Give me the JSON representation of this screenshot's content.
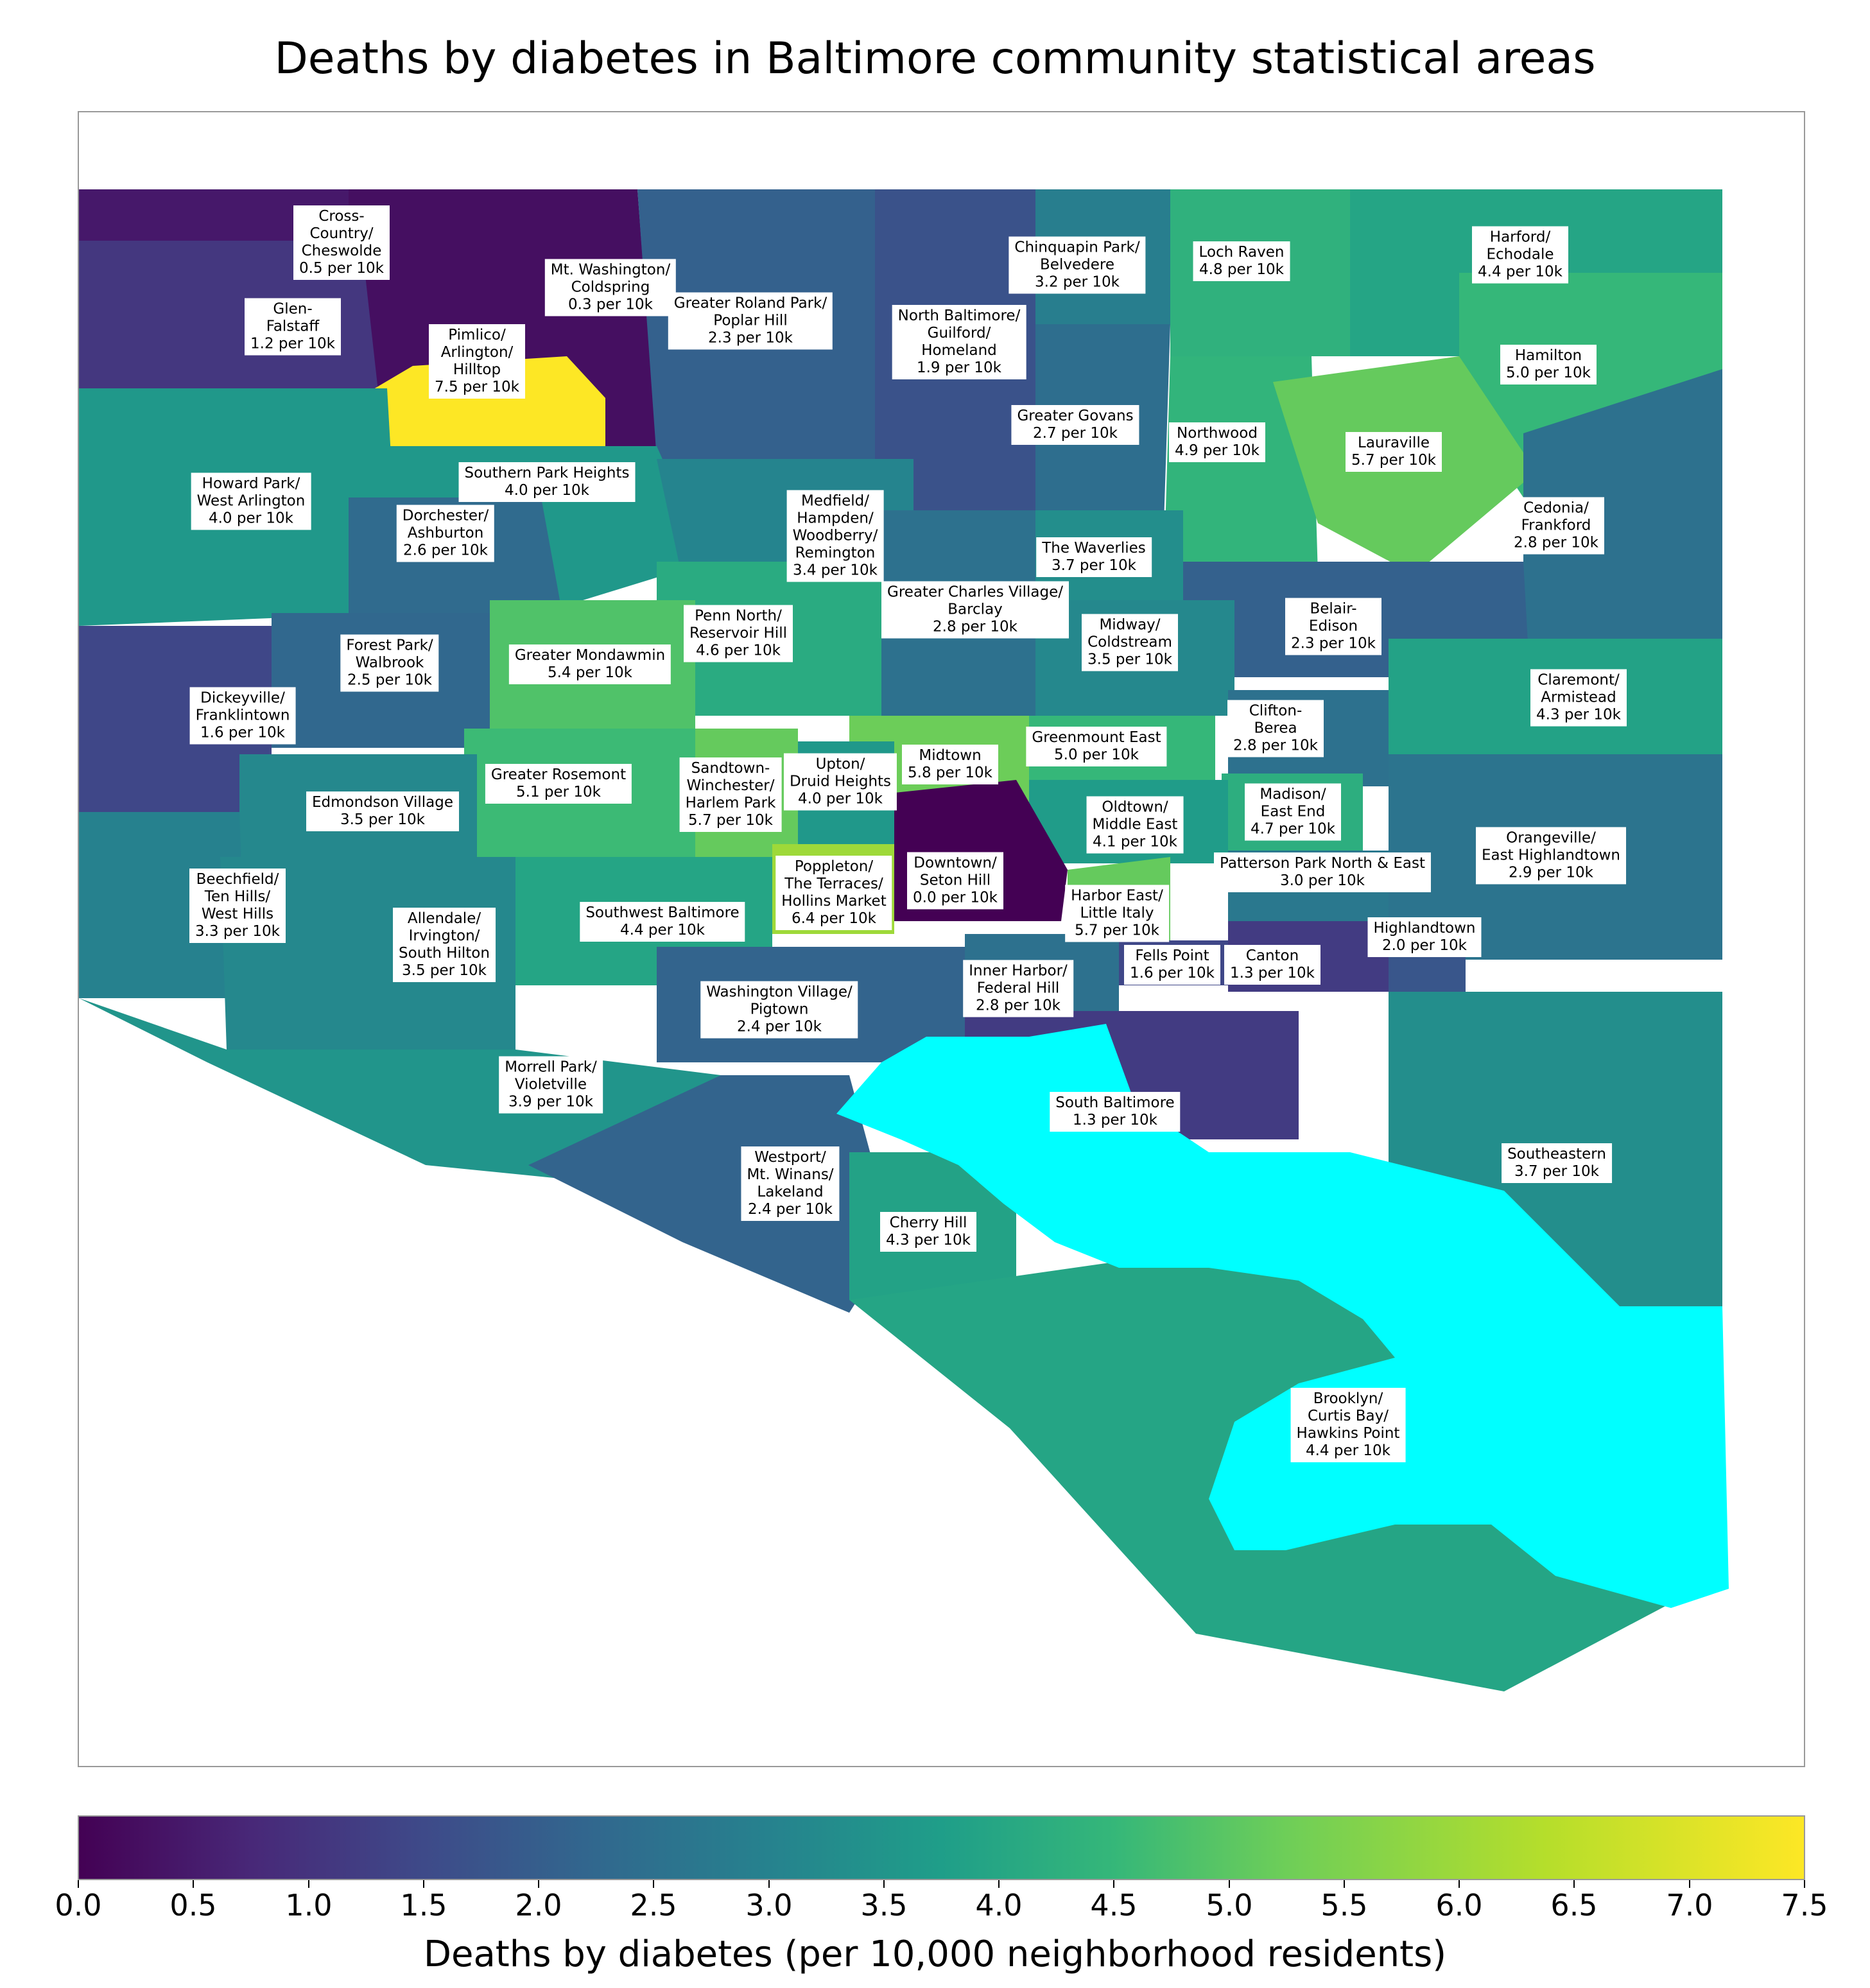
{
  "title": "Deaths by diabetes in Baltimore community statistical areas",
  "colorbar": {
    "label": "Deaths by diabetes (per 10,000 neighborhood residents)",
    "min": 0.0,
    "max": 7.5,
    "colormap": "viridis",
    "ticks": [
      "0.0",
      "0.5",
      "1.0",
      "1.5",
      "2.0",
      "2.5",
      "3.0",
      "3.5",
      "4.0",
      "4.5",
      "5.0",
      "5.5",
      "6.0",
      "6.5",
      "7.0",
      "7.5"
    ]
  },
  "water_color": "#00ffff",
  "colors": {
    "min": "#440154",
    "max": "#fde725"
  },
  "areas": [
    {
      "id": "cross-country",
      "lines": [
        "Cross-",
        "Country/",
        "Cheswolde"
      ],
      "value_text": "0.5 per 10k",
      "value": 0.5
    },
    {
      "id": "mt-washington",
      "lines": [
        "Mt. Washington/",
        "Coldspring"
      ],
      "value_text": "0.3 per 10k",
      "value": 0.3
    },
    {
      "id": "glen-falstaff",
      "lines": [
        "Glen-",
        "Falstaff"
      ],
      "value_text": "1.2 per 10k",
      "value": 1.2
    },
    {
      "id": "pimlico",
      "lines": [
        "Pimlico/",
        "Arlington/",
        "Hilltop"
      ],
      "value_text": "7.5 per 10k",
      "value": 7.5
    },
    {
      "id": "greater-roland-park",
      "lines": [
        "Greater Roland Park/",
        "Poplar Hill"
      ],
      "value_text": "2.3 per 10k",
      "value": 2.3
    },
    {
      "id": "north-baltimore",
      "lines": [
        "North Baltimore/",
        "Guilford/",
        "Homeland"
      ],
      "value_text": "1.9 per 10k",
      "value": 1.9
    },
    {
      "id": "chinquapin-park",
      "lines": [
        "Chinquapin Park/",
        "Belvedere"
      ],
      "value_text": "3.2 per 10k",
      "value": 3.2
    },
    {
      "id": "loch-raven",
      "lines": [
        "Loch Raven"
      ],
      "value_text": "4.8 per 10k",
      "value": 4.8
    },
    {
      "id": "harford-echodale",
      "lines": [
        "Harford/",
        "Echodale"
      ],
      "value_text": "4.4 per 10k",
      "value": 4.4
    },
    {
      "id": "hamilton",
      "lines": [
        "Hamilton"
      ],
      "value_text": "5.0 per 10k",
      "value": 5.0
    },
    {
      "id": "greater-govans",
      "lines": [
        "Greater Govans"
      ],
      "value_text": "2.7 per 10k",
      "value": 2.7
    },
    {
      "id": "northwood",
      "lines": [
        "Northwood"
      ],
      "value_text": "4.9 per 10k",
      "value": 4.9
    },
    {
      "id": "lauraville",
      "lines": [
        "Lauraville"
      ],
      "value_text": "5.7 per 10k",
      "value": 5.7
    },
    {
      "id": "southern-park-heights",
      "lines": [
        "Southern Park Heights"
      ],
      "value_text": "4.0 per 10k",
      "value": 4.0
    },
    {
      "id": "howard-park",
      "lines": [
        "Howard Park/",
        "West Arlington"
      ],
      "value_text": "4.0 per 10k",
      "value": 4.0
    },
    {
      "id": "dorchester",
      "lines": [
        "Dorchester/",
        "Ashburton"
      ],
      "value_text": "2.6 per 10k",
      "value": 2.6
    },
    {
      "id": "medfield",
      "lines": [
        "Medfield/",
        "Hampden/",
        "Woodberry/",
        "Remington"
      ],
      "value_text": "3.4 per 10k",
      "value": 3.4
    },
    {
      "id": "the-waverlies",
      "lines": [
        "The Waverlies"
      ],
      "value_text": "3.7 per 10k",
      "value": 3.7
    },
    {
      "id": "cedonia",
      "lines": [
        "Cedonia/",
        "Frankford"
      ],
      "value_text": "2.8 per 10k",
      "value": 2.8
    },
    {
      "id": "greater-charles-village",
      "lines": [
        "Greater Charles Village/",
        "Barclay"
      ],
      "value_text": "2.8 per 10k",
      "value": 2.8
    },
    {
      "id": "belair-edison",
      "lines": [
        "Belair-",
        "Edison"
      ],
      "value_text": "2.3 per 10k",
      "value": 2.3
    },
    {
      "id": "penn-north",
      "lines": [
        "Penn North/",
        "Reservoir Hill"
      ],
      "value_text": "4.6 per 10k",
      "value": 4.6
    },
    {
      "id": "midway",
      "lines": [
        "Midway/",
        "Coldstream"
      ],
      "value_text": "3.5 per 10k",
      "value": 3.5
    },
    {
      "id": "forest-park",
      "lines": [
        "Forest Park/",
        "Walbrook"
      ],
      "value_text": "2.5 per 10k",
      "value": 2.5
    },
    {
      "id": "greater-mondawmin",
      "lines": [
        "Greater Mondawmin"
      ],
      "value_text": "5.4 per 10k",
      "value": 5.4
    },
    {
      "id": "claremont",
      "lines": [
        "Claremont/",
        "Armistead"
      ],
      "value_text": "4.3 per 10k",
      "value": 4.3
    },
    {
      "id": "dickeyville",
      "lines": [
        "Dickeyville/",
        "Franklintown"
      ],
      "value_text": "1.6 per 10k",
      "value": 1.6
    },
    {
      "id": "clifton-berea",
      "lines": [
        "Clifton-",
        "Berea"
      ],
      "value_text": "2.8 per 10k",
      "value": 2.8
    },
    {
      "id": "greenmount-east",
      "lines": [
        "Greenmount East"
      ],
      "value_text": "5.0 per 10k",
      "value": 5.0
    },
    {
      "id": "midtown",
      "lines": [
        "Midtown"
      ],
      "value_text": "5.8 per 10k",
      "value": 5.8
    },
    {
      "id": "upton",
      "lines": [
        "Upton/",
        "Druid Heights"
      ],
      "value_text": "4.0 per 10k",
      "value": 4.0
    },
    {
      "id": "sandtown",
      "lines": [
        "Sandtown-",
        "Winchester/",
        "Harlem Park"
      ],
      "value_text": "5.7 per 10k",
      "value": 5.7
    },
    {
      "id": "greater-rosemont",
      "lines": [
        "Greater Rosemont"
      ],
      "value_text": "5.1 per 10k",
      "value": 5.1
    },
    {
      "id": "edmondson-village",
      "lines": [
        "Edmondson Village"
      ],
      "value_text": "3.5 per 10k",
      "value": 3.5
    },
    {
      "id": "madison-east-end",
      "lines": [
        "Madison/",
        "East End"
      ],
      "value_text": "4.7 per 10k",
      "value": 4.7
    },
    {
      "id": "oldtown",
      "lines": [
        "Oldtown/",
        "Middle East"
      ],
      "value_text": "4.1 per 10k",
      "value": 4.1
    },
    {
      "id": "orangeville",
      "lines": [
        "Orangeville/",
        "East Highlandtown"
      ],
      "value_text": "2.9 per 10k",
      "value": 2.9
    },
    {
      "id": "downtown",
      "lines": [
        "Downtown/",
        "Seton Hill"
      ],
      "value_text": "0.0 per 10k",
      "value": 0.0
    },
    {
      "id": "poppleton",
      "lines": [
        "Poppleton/",
        "The Terraces/",
        "Hollins Market"
      ],
      "value_text": "6.4 per 10k",
      "value": 6.4
    },
    {
      "id": "patterson-park",
      "lines": [
        "Patterson Park North & East"
      ],
      "value_text": "3.0 per 10k",
      "value": 3.0
    },
    {
      "id": "beechfield",
      "lines": [
        "Beechfield/",
        "Ten Hills/",
        "West Hills"
      ],
      "value_text": "3.3 per 10k",
      "value": 3.3
    },
    {
      "id": "harbor-east",
      "lines": [
        "Harbor East/",
        "Little Italy"
      ],
      "value_text": "5.7 per 10k",
      "value": 5.7
    },
    {
      "id": "allendale",
      "lines": [
        "Allendale/",
        "Irvington/",
        "South Hilton"
      ],
      "value_text": "3.5 per 10k",
      "value": 3.5
    },
    {
      "id": "southwest-baltimore",
      "lines": [
        "Southwest Baltimore"
      ],
      "value_text": "4.4 per 10k",
      "value": 4.4
    },
    {
      "id": "highlandtown",
      "lines": [
        "Highlandtown"
      ],
      "value_text": "2.0 per 10k",
      "value": 2.0
    },
    {
      "id": "fells-point",
      "lines": [
        "Fells Point"
      ],
      "value_text": "1.6 per 10k",
      "value": 1.6
    },
    {
      "id": "canton",
      "lines": [
        "Canton"
      ],
      "value_text": "1.3 per 10k",
      "value": 1.3
    },
    {
      "id": "inner-harbor",
      "lines": [
        "Inner Harbor/",
        "Federal Hill"
      ],
      "value_text": "2.8 per 10k",
      "value": 2.8
    },
    {
      "id": "washington-village",
      "lines": [
        "Washington Village/",
        "Pigtown"
      ],
      "value_text": "2.4 per 10k",
      "value": 2.4
    },
    {
      "id": "morrell-park",
      "lines": [
        "Morrell Park/",
        "Violetville"
      ],
      "value_text": "3.9 per 10k",
      "value": 3.9
    },
    {
      "id": "south-baltimore",
      "lines": [
        "South Baltimore"
      ],
      "value_text": "1.3 per 10k",
      "value": 1.3
    },
    {
      "id": "southeastern",
      "lines": [
        "Southeastern"
      ],
      "value_text": "3.7 per 10k",
      "value": 3.7
    },
    {
      "id": "westport",
      "lines": [
        "Westport/",
        "Mt. Winans/",
        "Lakeland"
      ],
      "value_text": "2.4 per 10k",
      "value": 2.4
    },
    {
      "id": "cherry-hill",
      "lines": [
        "Cherry Hill"
      ],
      "value_text": "4.3 per 10k",
      "value": 4.3
    },
    {
      "id": "brooklyn",
      "lines": [
        "Brooklyn/",
        "Curtis Bay/",
        "Hawkins Point"
      ],
      "value_text": "4.4 per 10k",
      "value": 4.4
    }
  ]
}
